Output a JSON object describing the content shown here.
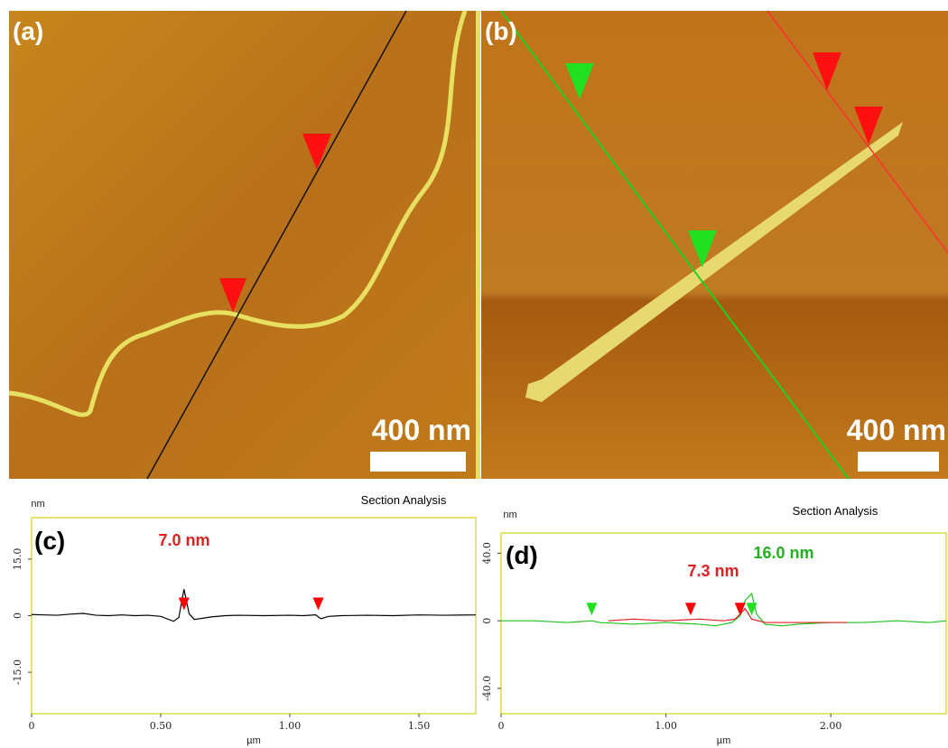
{
  "images": [
    {
      "label": "(a)",
      "scale_bar": "400 nm"
    },
    {
      "label": "(b)",
      "scale_bar": "400 nm"
    }
  ],
  "chart_data": [
    {
      "type": "line",
      "title": "Section Analysis",
      "panel": "(c)",
      "y_label": "nm",
      "x_label": "µm",
      "xlim": [
        0,
        1.72
      ],
      "xticks": [
        0,
        {
          "value": 0.5,
          "label": "0.50"
        },
        {
          "value": 1,
          "label": "1.00"
        },
        {
          "value": 1.5,
          "label": "1.50"
        }
      ],
      "ylim": [
        -26,
        26
      ],
      "yticks": [
        {
          "value": -15,
          "label": "-15.0"
        },
        0,
        {
          "value": 15,
          "label": "15.0"
        }
      ],
      "series": [
        {
          "color": "#000000",
          "x": [
            0,
            0.05,
            0.1,
            0.15,
            0.2,
            0.25,
            0.3,
            0.35,
            0.4,
            0.45,
            0.5,
            0.55,
            0.57,
            0.59,
            0.61,
            0.63,
            0.7,
            0.75,
            0.8,
            0.9,
            1.0,
            1.05,
            1.1,
            1.12,
            1.15,
            1.2,
            1.3,
            1.4,
            1.5,
            1.6,
            1.72
          ],
          "values": [
            0.3,
            0.2,
            0.1,
            0.4,
            0.6,
            0.1,
            0,
            0.2,
            0,
            0.1,
            -0.2,
            -1.5,
            -0.5,
            7.0,
            0.5,
            -1,
            -0.3,
            0,
            0.1,
            0,
            0.1,
            0,
            0.2,
            -0.8,
            -0.2,
            0,
            0.1,
            0,
            0.2,
            0.1,
            0.2
          ]
        }
      ],
      "markers": [
        {
          "x": 0.59,
          "color": "#ff0000"
        },
        {
          "x": 1.11,
          "color": "#ff0000"
        }
      ],
      "annotations": [
        {
          "text": "7.0 nm",
          "color": "#e02020"
        }
      ]
    },
    {
      "type": "line",
      "title": "Section Analysis",
      "panel": "(d)",
      "y_label": "nm",
      "x_label": "µm",
      "xlim": [
        0,
        2.7
      ],
      "xticks": [
        0,
        {
          "value": 1,
          "label": "1.00"
        },
        {
          "value": 2,
          "label": "2.00"
        }
      ],
      "ylim": [
        -55,
        52
      ],
      "yticks": [
        {
          "value": -40,
          "label": "-40.0"
        },
        0,
        {
          "value": 40,
          "label": "40.0"
        }
      ],
      "series": [
        {
          "color": "#20c020",
          "x": [
            0,
            0.2,
            0.4,
            0.55,
            0.6,
            0.8,
            1.0,
            1.2,
            1.3,
            1.4,
            1.45,
            1.48,
            1.52,
            1.55,
            1.6,
            1.7,
            1.8,
            2.0,
            2.2,
            2.4,
            2.6,
            2.7
          ],
          "values": [
            0,
            0,
            -1,
            0,
            -1,
            -2,
            -1,
            -2,
            -3,
            -1,
            3,
            12,
            16,
            4,
            -2,
            -3,
            -2,
            -1,
            -1,
            0,
            -1,
            0
          ]
        },
        {
          "color": "#e02020",
          "x": [
            0.65,
            0.8,
            1.0,
            1.2,
            1.35,
            1.42,
            1.46,
            1.48,
            1.52,
            1.6,
            1.8,
            2.0,
            2.1
          ],
          "values": [
            0,
            1,
            0,
            1,
            0,
            1,
            5,
            7.3,
            1,
            -1,
            -1,
            -1,
            -1
          ]
        }
      ],
      "markers": [
        {
          "x": 0.55,
          "color": "#20e020"
        },
        {
          "x": 1.15,
          "color": "#ff0000"
        },
        {
          "x": 1.45,
          "color": "#ff0000"
        },
        {
          "x": 1.52,
          "color": "#20e020"
        }
      ],
      "annotations": [
        {
          "text": "7.3 nm",
          "color": "#e02020"
        },
        {
          "text": "16.0 nm",
          "color": "#20b020"
        }
      ]
    }
  ]
}
